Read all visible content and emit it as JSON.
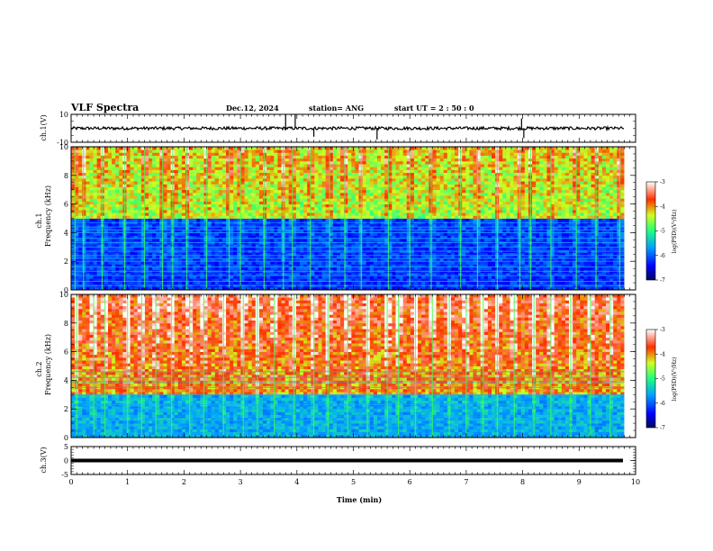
{
  "header": {
    "title": "VLF Spectra",
    "date": "Dec.12, 2024",
    "station": "station= ANG",
    "start_ut": "start  UT =   2 : 50 : 0"
  },
  "colors": {
    "spectrogram_low": "#000a5a",
    "spectrogram_mid": "#1aa8ff",
    "spectrogram_high": "#3fff3f",
    "spectrogram_peak": "#ff2000",
    "waveform": "#000000"
  },
  "chart_data": [
    {
      "type": "line",
      "name": "ch.1 waveform",
      "ylabel": "ch.1(V)",
      "ylim": [
        -10,
        10
      ],
      "yticks": [
        "10",
        "-10"
      ],
      "xlim": [
        0,
        10
      ],
      "baseline": 0,
      "spikes": [
        {
          "x": 3.8,
          "y": 10
        },
        {
          "x": 3.97,
          "y": 10
        },
        {
          "x": 4.3,
          "y": -6
        },
        {
          "x": 5.42,
          "y": -8
        },
        {
          "x": 7.98,
          "y": 7
        },
        {
          "x": 8.02,
          "y": -7
        }
      ]
    },
    {
      "type": "heatmap",
      "name": "ch.1 spectrogram",
      "ylabel_top": "ch.1",
      "ylabel": "Frequency (kHz)",
      "ylim": [
        0,
        10
      ],
      "yticks": [
        "0",
        "2",
        "4",
        "6",
        "8",
        "10"
      ],
      "xlim": [
        0,
        9.8
      ],
      "colorbar": {
        "label": "log(PSD)(V²/Hz)",
        "range": [
          -7,
          -3
        ],
        "ticks": [
          "-3",
          "-4",
          "-5",
          "-6",
          "-7"
        ]
      },
      "background_level": -5.3,
      "upper_band_kHz": [
        5,
        10
      ],
      "upper_band_level": -4.6,
      "narrowband_lines_kHz": [
        0.3,
        0.6,
        1.0,
        1.3,
        1.6,
        2.0,
        2.2,
        2.4,
        2.7,
        3.0,
        3.3,
        3.6,
        4.0,
        4.2,
        4.4,
        4.7
      ],
      "bursts_min": [
        0.07,
        0.22,
        0.55,
        0.95,
        1.3,
        1.62,
        1.8,
        2.05,
        2.4,
        2.8,
        3.0,
        3.42,
        3.76,
        3.92,
        4.24,
        4.58,
        4.85,
        5.14,
        5.62,
        6.0,
        6.38,
        6.9,
        7.2,
        7.55,
        7.95,
        8.14,
        8.5,
        8.95,
        9.3,
        9.72
      ]
    },
    {
      "type": "heatmap",
      "name": "ch.2 spectrogram",
      "ylabel_top": "ch.2",
      "ylabel": "Frequency (kHz)",
      "ylim": [
        0,
        10
      ],
      "yticks": [
        "0",
        "2",
        "4",
        "6",
        "8",
        "10"
      ],
      "xlim": [
        0,
        9.8
      ],
      "colorbar": {
        "label": "log(PSD)(V²/Hz)",
        "range": [
          -7,
          -3
        ],
        "ticks": [
          "-3",
          "-4",
          "-5",
          "-6",
          "-7"
        ]
      },
      "background_level": -4.7,
      "upper_band_kHz": [
        3,
        10
      ],
      "upper_band_level": -4.1,
      "narrowband_lines_kHz": [
        0.3,
        0.8,
        1.2,
        1.5,
        2.0,
        2.3,
        2.7,
        3.0,
        3.5,
        3.9,
        4.2,
        4.6
      ],
      "bursts_min": [
        0.1,
        0.4,
        0.6,
        1.0,
        1.25,
        1.5,
        1.78,
        2.1,
        2.35,
        2.7,
        3.05,
        3.3,
        3.6,
        3.95,
        4.3,
        4.55,
        4.9,
        5.25,
        5.6,
        5.8,
        6.1,
        6.4,
        6.7,
        7.0,
        7.3,
        7.55,
        7.85,
        8.2,
        8.5,
        8.85,
        9.2,
        9.55
      ]
    },
    {
      "type": "line",
      "name": "ch.3 waveform",
      "ylabel": "ch.3(V)",
      "ylim": [
        -5,
        5
      ],
      "yticks": [
        "5",
        "0",
        "-5"
      ],
      "xlim": [
        0,
        10
      ],
      "xlabel": "Time (min)",
      "xticks": [
        "0",
        "1",
        "2",
        "3",
        "4",
        "5",
        "6",
        "7",
        "8",
        "9",
        "10"
      ],
      "baseline": 0
    }
  ]
}
